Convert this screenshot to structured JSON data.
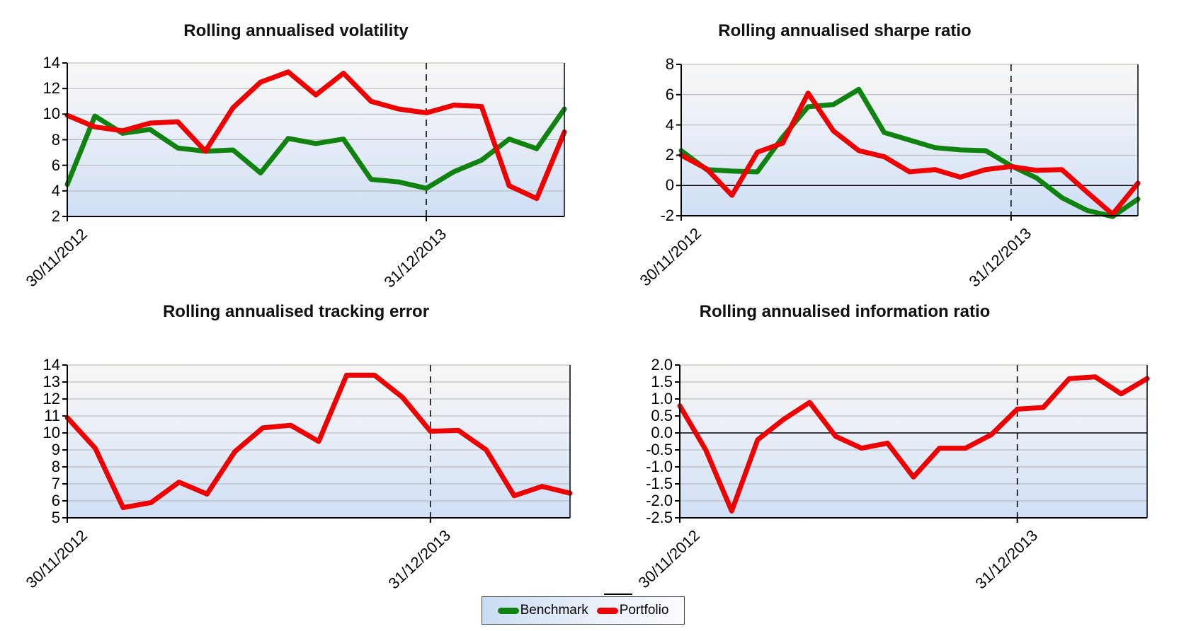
{
  "colors": {
    "benchmark": "#0f820f",
    "portfolio": "#ee0000",
    "gridline": "#b3b3b3",
    "axis": "#000000",
    "dashed_line": "#000000",
    "plot_bg_top": "#f7f7f6",
    "plot_bg_mid": "#e9eef7",
    "plot_bg_bottom": "#cfdff5"
  },
  "legend": {
    "items": [
      {
        "label": "Benchmark",
        "series": "benchmark"
      },
      {
        "label": "Portfolio",
        "series": "portfolio"
      }
    ]
  },
  "chart_data": [
    {
      "type": "line",
      "title": "Rolling annualised volatility",
      "x_count": 19,
      "x_tick_labels": [
        {
          "index": 0,
          "label": "30/11/2012"
        },
        {
          "index": 13,
          "label": "31/12/2013"
        }
      ],
      "dashed_vline_index": 13,
      "ylim": [
        2,
        14
      ],
      "yticks": [
        14,
        12,
        10,
        8,
        6,
        4,
        2
      ],
      "ytick_labels": [
        "14",
        "12",
        "10",
        "8",
        "6",
        "4",
        "2"
      ],
      "zero_line": false,
      "grid": true,
      "series": [
        {
          "name": "Benchmark",
          "color_key": "benchmark",
          "values": [
            4.5,
            9.85,
            8.5,
            8.8,
            7.35,
            7.1,
            7.2,
            5.4,
            8.1,
            7.7,
            8.05,
            4.9,
            4.7,
            4.2,
            5.5,
            6.4,
            8.05,
            7.3,
            10.4
          ]
        },
        {
          "name": "Portfolio",
          "color_key": "portfolio",
          "values": [
            9.9,
            9.0,
            8.7,
            9.3,
            9.4,
            7.1,
            10.5,
            12.5,
            13.3,
            11.5,
            13.2,
            11.0,
            10.4,
            10.1,
            10.7,
            10.6,
            4.4,
            3.4,
            8.6
          ]
        }
      ]
    },
    {
      "type": "line",
      "title": "Rolling annualised sharpe ratio",
      "x_count": 19,
      "x_tick_labels": [
        {
          "index": 0,
          "label": "30/11/2012"
        },
        {
          "index": 13,
          "label": "31/12/2013"
        }
      ],
      "dashed_vline_index": 13,
      "ylim": [
        -2,
        8
      ],
      "yticks": [
        8,
        6,
        4,
        2,
        0,
        -2
      ],
      "ytick_labels": [
        "8",
        "6",
        "4",
        "2",
        "0",
        "-2"
      ],
      "zero_line": true,
      "grid": true,
      "series": [
        {
          "name": "Benchmark",
          "color_key": "benchmark",
          "values": [
            2.3,
            1.05,
            0.95,
            0.9,
            3.2,
            5.2,
            5.35,
            6.35,
            3.5,
            3.0,
            2.5,
            2.35,
            2.3,
            1.3,
            0.5,
            -0.8,
            -1.65,
            -2.05,
            -0.9
          ]
        },
        {
          "name": "Portfolio",
          "color_key": "portfolio",
          "values": [
            2.0,
            1.1,
            -0.65,
            2.2,
            2.8,
            6.1,
            3.6,
            2.3,
            1.9,
            0.9,
            1.05,
            0.55,
            1.05,
            1.25,
            1.0,
            1.05,
            -0.45,
            -1.9,
            0.15
          ]
        }
      ]
    },
    {
      "type": "line",
      "title": "Rolling annualised tracking error",
      "x_count": 19,
      "x_tick_labels": [
        {
          "index": 0,
          "label": "30/11/2012"
        },
        {
          "index": 13,
          "label": "31/12/2013"
        }
      ],
      "dashed_vline_index": 13,
      "ylim": [
        5,
        14
      ],
      "yticks": [
        14,
        13,
        12,
        11,
        10,
        9,
        8,
        7,
        6,
        5
      ],
      "ytick_labels": [
        "14",
        "13",
        "12",
        "11",
        "10",
        "9",
        "8",
        "7",
        "6",
        "5"
      ],
      "zero_line": false,
      "grid": true,
      "series": [
        {
          "name": "Portfolio",
          "color_key": "portfolio",
          "values": [
            10.9,
            9.1,
            5.6,
            5.9,
            7.1,
            6.4,
            8.9,
            10.3,
            10.45,
            9.5,
            13.4,
            13.4,
            12.1,
            10.1,
            10.15,
            9.0,
            6.3,
            6.85,
            6.45
          ]
        }
      ]
    },
    {
      "type": "line",
      "title": "Rolling annualised information ratio",
      "x_count": 19,
      "x_tick_labels": [
        {
          "index": 0,
          "label": "30/11/2012"
        },
        {
          "index": 13,
          "label": "31/12/2013"
        }
      ],
      "dashed_vline_index": 13,
      "ylim": [
        -2.5,
        2.0
      ],
      "yticks": [
        2.0,
        1.5,
        1.0,
        0.5,
        0.0,
        -0.5,
        -1.0,
        -1.5,
        -2.0,
        -2.5
      ],
      "ytick_labels": [
        "2.0",
        "1.5",
        "1.0",
        "0.5",
        "0.0",
        "-0.5",
        "-1.0",
        "-1.5",
        "-2.0",
        "-2.5"
      ],
      "zero_line": true,
      "grid": true,
      "series": [
        {
          "name": "Portfolio",
          "color_key": "portfolio",
          "values": [
            0.8,
            -0.5,
            -2.3,
            -0.2,
            0.4,
            0.9,
            -0.1,
            -0.45,
            -0.3,
            -1.3,
            -0.45,
            -0.45,
            -0.05,
            0.7,
            0.75,
            1.6,
            1.65,
            1.15,
            1.6
          ]
        }
      ]
    }
  ]
}
